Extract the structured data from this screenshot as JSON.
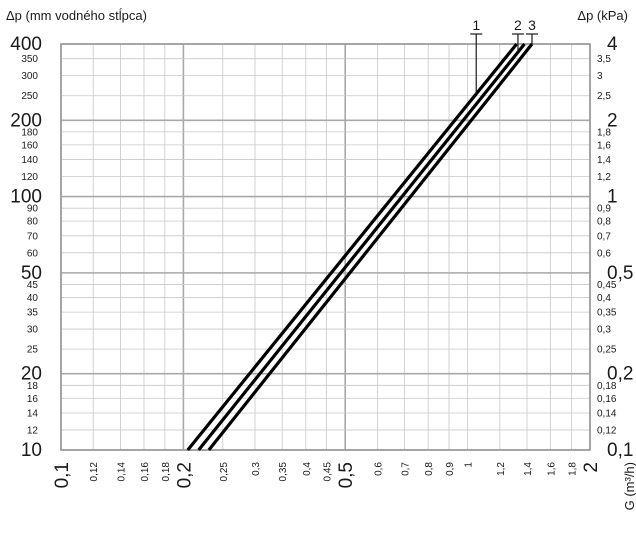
{
  "chart_data": {
    "type": "line",
    "title": "",
    "ylabel_left": "Δp (mm vodného stĺpca)",
    "ylabel_right": "Δp (kPa)",
    "xlabel": "G (m³/h)",
    "x_scale": "log",
    "y_scale": "log",
    "xlim": [
      0.1,
      2
    ],
    "ylim_left": [
      10,
      400
    ],
    "ylim_right": [
      0.1,
      4
    ],
    "grid": true,
    "x_ticks": [
      {
        "v": 0.1,
        "label": "0,1",
        "big": true
      },
      {
        "v": 0.12,
        "label": "0,12",
        "big": false
      },
      {
        "v": 0.14,
        "label": "0,14",
        "big": false
      },
      {
        "v": 0.16,
        "label": "0,16",
        "big": false
      },
      {
        "v": 0.18,
        "label": "0,18",
        "big": false
      },
      {
        "v": 0.2,
        "label": "0,2",
        "big": true
      },
      {
        "v": 0.25,
        "label": "0,25",
        "big": false
      },
      {
        "v": 0.3,
        "label": "0,3",
        "big": false
      },
      {
        "v": 0.35,
        "label": "0,35",
        "big": false
      },
      {
        "v": 0.4,
        "label": "0,4",
        "big": false
      },
      {
        "v": 0.45,
        "label": "0,45",
        "big": false
      },
      {
        "v": 0.5,
        "label": "0,5",
        "big": true
      },
      {
        "v": 0.6,
        "label": "0,6",
        "big": false
      },
      {
        "v": 0.7,
        "label": "0,7",
        "big": false
      },
      {
        "v": 0.8,
        "label": "0,8",
        "big": false
      },
      {
        "v": 0.9,
        "label": "0,9",
        "big": false
      },
      {
        "v": 1,
        "label": "1",
        "big": false
      },
      {
        "v": 1.2,
        "label": "1,2",
        "big": false
      },
      {
        "v": 1.4,
        "label": "1,4",
        "big": false
      },
      {
        "v": 1.6,
        "label": "1,6",
        "big": false
      },
      {
        "v": 1.8,
        "label": "1,8",
        "big": false
      },
      {
        "v": 2,
        "label": "2",
        "big": true
      }
    ],
    "y_ticks_left": [
      {
        "v": 10,
        "label": "10",
        "big": true
      },
      {
        "v": 12,
        "label": "12",
        "big": false
      },
      {
        "v": 14,
        "label": "14",
        "big": false
      },
      {
        "v": 16,
        "label": "16",
        "big": false
      },
      {
        "v": 18,
        "label": "18",
        "big": false
      },
      {
        "v": 20,
        "label": "20",
        "big": true
      },
      {
        "v": 25,
        "label": "25",
        "big": false
      },
      {
        "v": 30,
        "label": "30",
        "big": false
      },
      {
        "v": 35,
        "label": "35",
        "big": false
      },
      {
        "v": 40,
        "label": "40",
        "big": false
      },
      {
        "v": 45,
        "label": "45",
        "big": false
      },
      {
        "v": 50,
        "label": "50",
        "big": true
      },
      {
        "v": 60,
        "label": "60",
        "big": false
      },
      {
        "v": 70,
        "label": "70",
        "big": false
      },
      {
        "v": 80,
        "label": "80",
        "big": false
      },
      {
        "v": 90,
        "label": "90",
        "big": false
      },
      {
        "v": 100,
        "label": "100",
        "big": true
      },
      {
        "v": 120,
        "label": "120",
        "big": false
      },
      {
        "v": 140,
        "label": "140",
        "big": false
      },
      {
        "v": 160,
        "label": "160",
        "big": false
      },
      {
        "v": 180,
        "label": "180",
        "big": false
      },
      {
        "v": 200,
        "label": "200",
        "big": true
      },
      {
        "v": 250,
        "label": "250",
        "big": false
      },
      {
        "v": 300,
        "label": "300",
        "big": false
      },
      {
        "v": 350,
        "label": "350",
        "big": false
      },
      {
        "v": 400,
        "label": "400",
        "big": true
      }
    ],
    "y_ticks_right": [
      {
        "v": 0.1,
        "label": "0,1",
        "big": true
      },
      {
        "v": 0.12,
        "label": "0,12",
        "big": false
      },
      {
        "v": 0.14,
        "label": "0,14",
        "big": false
      },
      {
        "v": 0.16,
        "label": "0,16",
        "big": false
      },
      {
        "v": 0.18,
        "label": "0,18",
        "big": false
      },
      {
        "v": 0.2,
        "label": "0,2",
        "big": true
      },
      {
        "v": 0.25,
        "label": "0,25",
        "big": false
      },
      {
        "v": 0.3,
        "label": "0,3",
        "big": false
      },
      {
        "v": 0.35,
        "label": "0,35",
        "big": false
      },
      {
        "v": 0.4,
        "label": "0,4",
        "big": false
      },
      {
        "v": 0.45,
        "label": "0,45",
        "big": false
      },
      {
        "v": 0.5,
        "label": "0,5",
        "big": true
      },
      {
        "v": 0.6,
        "label": "0,6",
        "big": false
      },
      {
        "v": 0.7,
        "label": "0,7",
        "big": false
      },
      {
        "v": 0.8,
        "label": "0,8",
        "big": false
      },
      {
        "v": 0.9,
        "label": "0,9",
        "big": false
      },
      {
        "v": 1,
        "label": "1",
        "big": true
      },
      {
        "v": 1.2,
        "label": "1,2",
        "big": false
      },
      {
        "v": 1.4,
        "label": "1,4",
        "big": false
      },
      {
        "v": 1.6,
        "label": "1,6",
        "big": false
      },
      {
        "v": 1.8,
        "label": "1,8",
        "big": false
      },
      {
        "v": 2,
        "label": "2",
        "big": true
      },
      {
        "v": 2.5,
        "label": "2,5",
        "big": false
      },
      {
        "v": 3,
        "label": "3",
        "big": false
      },
      {
        "v": 3.5,
        "label": "3,5",
        "big": false
      },
      {
        "v": 4,
        "label": "4",
        "big": true
      }
    ],
    "series": [
      {
        "name": "1",
        "x": [
          0.205,
          1.32
        ],
        "y": [
          10,
          400
        ],
        "label_x": 1.05
      },
      {
        "name": "2",
        "x": [
          0.218,
          1.38
        ],
        "y": [
          10,
          400
        ],
        "label_x": 1.33
      },
      {
        "name": "3",
        "x": [
          0.231,
          1.44
        ],
        "y": [
          10,
          400
        ],
        "label_x": 1.44
      }
    ],
    "colors": {
      "curve": "#000000",
      "grid_major": "#a8a8a8",
      "grid_minor": "#c8c8c8",
      "text": "#1a1a1a"
    }
  }
}
